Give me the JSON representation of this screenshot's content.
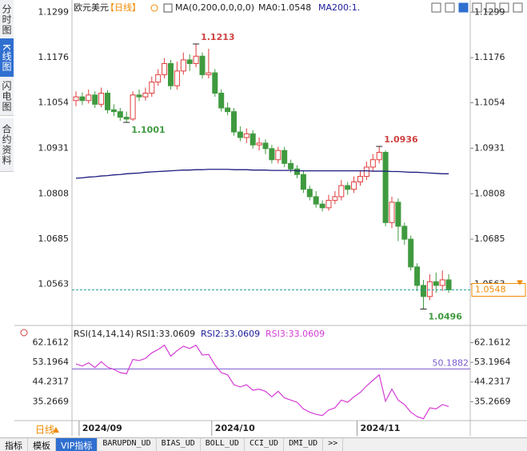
{
  "sidebar": [
    "分时图",
    "K线图",
    "闪电图",
    "合约资料"
  ],
  "header": {
    "symbol": "欧元美元",
    "period": "【日线】",
    "indicator": "MA(0,200,0,0,0,0)",
    "ma0": "MA0:1.0548",
    "ma200": "MA200:1."
  },
  "chart_data": [
    {
      "type": "candlestick",
      "open": [
        1.106,
        1.107,
        1.106,
        1.1075,
        1.105,
        1.108,
        1.1035,
        1.103,
        1.1015,
        1.101,
        1.1075,
        1.107,
        1.108,
        1.111,
        1.113,
        1.116,
        1.11,
        1.114,
        1.117,
        1.116,
        1.118,
        1.113,
        1.1135,
        1.108,
        1.104,
        1.103,
        1.0975,
        1.096,
        1.097,
        1.094,
        1.0945,
        1.093,
        1.09,
        1.0925,
        1.089,
        1.0875,
        1.086,
        1.082,
        1.08,
        1.078,
        1.077,
        1.079,
        1.08,
        1.083,
        1.082,
        1.084,
        1.0855,
        1.088,
        1.09,
        1.092,
        1.073,
        1.0785,
        1.072,
        1.0685,
        1.061,
        1.056,
        1.053,
        1.057,
        1.056,
        1.0575
      ],
      "high": [
        1.1085,
        1.1082,
        1.109,
        1.1085,
        1.1095,
        1.1088,
        1.105,
        1.104,
        1.103,
        1.1085,
        1.109,
        1.1095,
        1.1125,
        1.1145,
        1.1175,
        1.117,
        1.1165,
        1.119,
        1.1185,
        1.1213,
        1.119,
        1.12,
        1.1145,
        1.109,
        1.1055,
        1.104,
        1.099,
        1.0985,
        1.098,
        1.096,
        1.0955,
        1.094,
        1.0935,
        1.0935,
        1.09,
        1.0885,
        1.087,
        1.083,
        1.0815,
        1.079,
        1.0805,
        1.0815,
        1.0845,
        1.084,
        1.0855,
        1.087,
        1.0895,
        1.0915,
        1.0936,
        1.0925,
        1.08,
        1.0795,
        1.073,
        1.0695,
        1.062,
        1.0575,
        1.059,
        1.0595,
        1.06,
        1.059
      ],
      "low": [
        1.1045,
        1.1048,
        1.1052,
        1.104,
        1.1042,
        1.1025,
        1.1018,
        1.1005,
        1.1001,
        1.1005,
        1.1058,
        1.106,
        1.107,
        1.11,
        1.112,
        1.109,
        1.109,
        1.113,
        1.114,
        1.115,
        1.112,
        1.112,
        1.107,
        1.103,
        1.102,
        1.0965,
        1.095,
        1.0945,
        1.093,
        1.0925,
        1.0915,
        1.089,
        1.089,
        1.088,
        1.0865,
        1.085,
        1.081,
        1.079,
        1.077,
        1.076,
        1.0762,
        1.078,
        1.079,
        1.0805,
        1.081,
        1.083,
        1.0845,
        1.087,
        1.089,
        1.072,
        1.0715,
        1.068,
        1.067,
        1.06,
        1.0545,
        1.0496,
        1.052,
        1.054,
        1.0545,
        1.054
      ],
      "close": [
        1.107,
        1.106,
        1.1075,
        1.105,
        1.108,
        1.1035,
        1.103,
        1.1015,
        1.101,
        1.1075,
        1.107,
        1.108,
        1.111,
        1.113,
        1.116,
        1.11,
        1.114,
        1.117,
        1.116,
        1.118,
        1.113,
        1.1135,
        1.108,
        1.104,
        1.103,
        1.0975,
        1.096,
        1.097,
        1.094,
        1.0945,
        1.093,
        1.09,
        1.0925,
        1.089,
        1.0875,
        1.086,
        1.082,
        1.08,
        1.078,
        1.077,
        1.079,
        1.08,
        1.083,
        1.082,
        1.084,
        1.0855,
        1.088,
        1.09,
        1.092,
        1.073,
        1.0785,
        1.072,
        1.0685,
        1.061,
        1.056,
        1.053,
        1.057,
        1.056,
        1.0575,
        1.0548
      ],
      "up_color": "#e03c3c",
      "down_color": "#3f9a3f",
      "ma_line": {
        "color": "#1c1c80",
        "values": [
          1.085,
          1.0851,
          1.0853,
          1.0854,
          1.0856,
          1.0857,
          1.0859,
          1.086,
          1.0862,
          1.0863,
          1.0864,
          1.0866,
          1.0867,
          1.0868,
          1.0869,
          1.087,
          1.0871,
          1.0872,
          1.0872,
          1.0873,
          1.0873,
          1.0874,
          1.0874,
          1.0874,
          1.0874,
          1.0873,
          1.0873,
          1.0873,
          1.0872,
          1.0872,
          1.0872,
          1.0871,
          1.0871,
          1.0871,
          1.0871,
          1.087,
          1.087,
          1.087,
          1.087,
          1.087,
          1.087,
          1.087,
          1.087,
          1.087,
          1.087,
          1.087,
          1.087,
          1.0869,
          1.0869,
          1.0869,
          1.0868,
          1.0868,
          1.0867,
          1.0866,
          1.0866,
          1.0865,
          1.0864,
          1.0863,
          1.0862,
          1.0862
        ]
      },
      "ylim": [
        1.0456,
        1.1332
      ],
      "yticks": [
        1.1299,
        1.1176,
        1.1054,
        1.0931,
        1.0808,
        1.0685,
        1.0563
      ],
      "current_price": 1.0548,
      "annotations": [
        {
          "index": 19,
          "value": 1.1213,
          "color": "#d04040"
        },
        {
          "index": 8,
          "value": 1.1001,
          "color": "#3f9a3f"
        },
        {
          "index": 48,
          "value": 1.0936,
          "color": "#d04040"
        },
        {
          "index": 55,
          "value": 1.0496,
          "color": "#3f9a3f"
        }
      ],
      "xticks": [
        {
          "value": 1,
          "label": "2024/09"
        },
        {
          "value": 22,
          "label": "2024/10"
        },
        {
          "value": 45,
          "label": "2024/11"
        }
      ]
    },
    {
      "type": "line",
      "title": "RSI(14,14,14)",
      "legend": [
        {
          "text": "RSI1:33.0609",
          "color": "#222222"
        },
        {
          "text": "RSI2:33.0609",
          "color": "#1c1c9a"
        },
        {
          "text": "RSI3:33.0609",
          "color": "#d43cd4"
        }
      ],
      "series": [
        {
          "color": "#d43cd4",
          "values": [
            52.5,
            51.5,
            53.0,
            50.8,
            53.5,
            51.0,
            50.0,
            48.5,
            48.0,
            54.5,
            54.0,
            55.0,
            57.5,
            59.0,
            61.0,
            56.0,
            58.5,
            60.5,
            59.5,
            61.0,
            56.5,
            56.8,
            52.0,
            48.5,
            47.5,
            43.0,
            42.0,
            43.0,
            40.5,
            41.0,
            40.0,
            37.5,
            40.0,
            37.0,
            36.0,
            35.0,
            32.0,
            30.5,
            29.5,
            29.0,
            31.5,
            32.5,
            36.0,
            35.0,
            37.5,
            39.5,
            42.5,
            45.0,
            47.5,
            35.5,
            41.0,
            36.0,
            34.0,
            30.5,
            28.5,
            27.5,
            32.5,
            32.0,
            34.0,
            33.0609
          ]
        }
      ],
      "ylim": [
        26.67,
        68.89
      ],
      "yticks": [
        62.1612,
        53.1964,
        44.2317,
        35.2669
      ],
      "reference_line": 50.1882,
      "reference_color": "#7a5ad0"
    }
  ],
  "footer": {
    "period": "日线",
    "tabs": [
      "指标",
      "模板",
      "VIP指标",
      "BARUPDN_UD",
      "BIAS_UD",
      "BOLL_UD",
      "CCI_UD",
      "DMI_UD",
      ">>"
    ]
  }
}
